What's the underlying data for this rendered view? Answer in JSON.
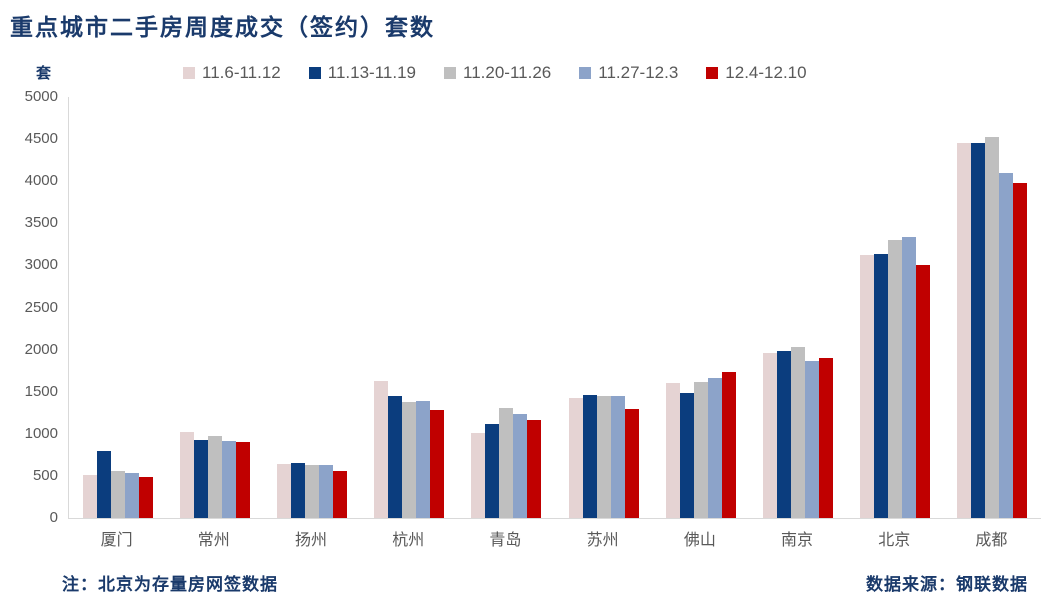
{
  "title": "重点城市二手房周度成交（签约）套数",
  "unit_label": "套",
  "note_left": "注：北京为存量房网签数据",
  "note_right": "数据来源：钢联数据",
  "colors": {
    "title_text": "#1a3a6b",
    "axis_text": "#595959",
    "axis_line": "#d9d9d9",
    "background": "#ffffff"
  },
  "chart_data": {
    "type": "bar",
    "title": "重点城市二手房周度成交（签约）套数",
    "xlabel": "",
    "ylabel": "套",
    "ylim": [
      0,
      5000
    ],
    "ytick_step": 500,
    "yticks": [
      0,
      500,
      1000,
      1500,
      2000,
      2500,
      3000,
      3500,
      4000,
      4500,
      5000
    ],
    "grid": false,
    "legend_position": "top",
    "categories": [
      "厦门",
      "常州",
      "扬州",
      "杭州",
      "青岛",
      "苏州",
      "佛山",
      "南京",
      "北京",
      "成都"
    ],
    "series": [
      {
        "name": "11.6-11.12",
        "color": "#e5d3d3",
        "values": [
          510,
          1020,
          640,
          1625,
          1010,
          1420,
          1600,
          1960,
          3120,
          4450
        ]
      },
      {
        "name": "11.13-11.19",
        "color": "#0b3d7e",
        "values": [
          790,
          930,
          650,
          1455,
          1120,
          1460,
          1480,
          1985,
          3140,
          4450
        ]
      },
      {
        "name": "11.20-11.26",
        "color": "#bfbfbf",
        "values": [
          560,
          970,
          630,
          1380,
          1310,
          1450,
          1610,
          2030,
          3300,
          4520
        ]
      },
      {
        "name": "11.27-12.3",
        "color": "#8ca3c9",
        "values": [
          530,
          910,
          635,
          1395,
          1230,
          1455,
          1660,
          1865,
          3340,
          4100
        ]
      },
      {
        "name": "12.4-12.10",
        "color": "#c00000",
        "values": [
          490,
          900,
          555,
          1280,
          1170,
          1300,
          1740,
          1895,
          3010,
          3980
        ]
      }
    ]
  }
}
